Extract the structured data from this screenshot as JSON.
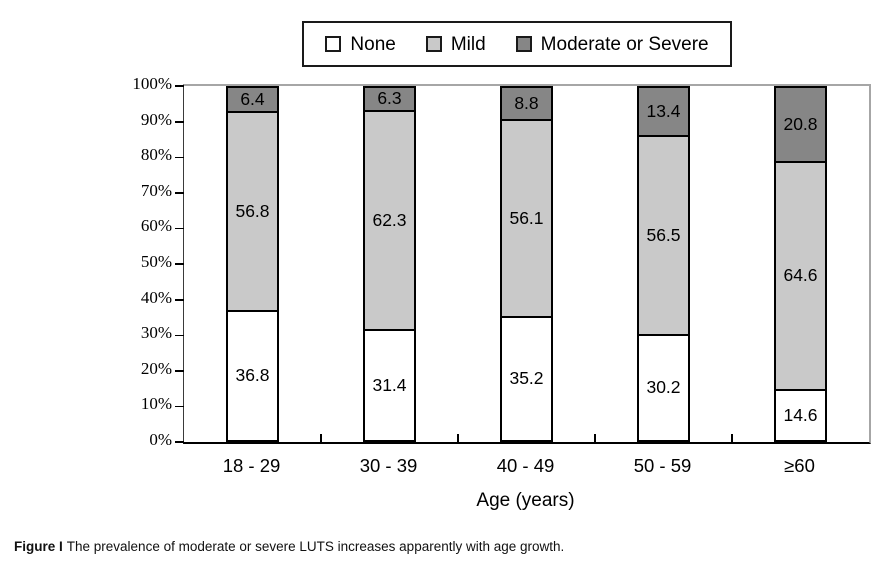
{
  "figure": {
    "caption_label": "Figure I",
    "caption_text": "The prevalence of moderate or severe LUTS increases apparently with age growth."
  },
  "chart_data": {
    "type": "bar",
    "stacked": true,
    "title": "",
    "xlabel": "Age (years)",
    "ylabel": "",
    "ylim": [
      0,
      100
    ],
    "grid": false,
    "legend_position": "top",
    "ytick_labels": [
      "0%",
      "10%",
      "20%",
      "30%",
      "40%",
      "50%",
      "60%",
      "70%",
      "80%",
      "90%",
      "100%"
    ],
    "categories": [
      "18 - 29",
      "30 - 39",
      "40 - 49",
      "50 - 59",
      "≥60"
    ],
    "series": [
      {
        "name": "None",
        "color": "#ffffff",
        "values": [
          36.8,
          31.4,
          35.2,
          30.2,
          14.6
        ]
      },
      {
        "name": "Mild",
        "color": "#c9c9c9",
        "values": [
          56.8,
          62.3,
          56.1,
          56.5,
          64.6
        ]
      },
      {
        "name": "Moderate or Severe",
        "color": "#868686",
        "values": [
          6.4,
          6.3,
          8.8,
          13.4,
          20.8
        ]
      }
    ]
  }
}
